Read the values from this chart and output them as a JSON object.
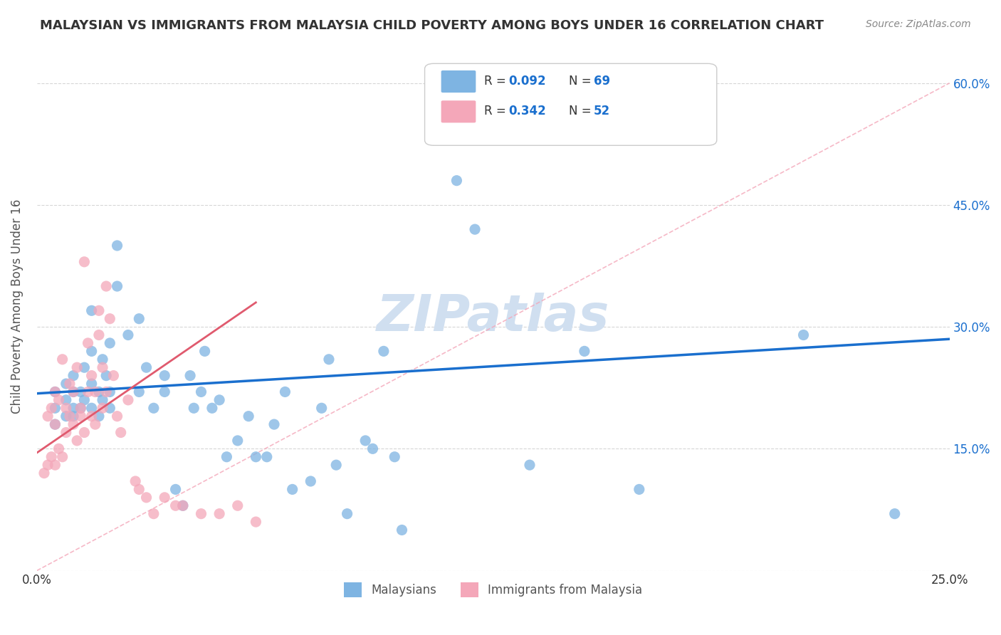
{
  "title": "MALAYSIAN VS IMMIGRANTS FROM MALAYSIA CHILD POVERTY AMONG BOYS UNDER 16 CORRELATION CHART",
  "source": "Source: ZipAtlas.com",
  "ylabel": "Child Poverty Among Boys Under 16",
  "xlim": [
    0.0,
    0.25
  ],
  "ylim": [
    0.0,
    0.65
  ],
  "blue_color": "#7eb4e2",
  "pink_color": "#f4a7b9",
  "blue_line_color": "#1a6fce",
  "pink_line_color": "#e05a6e",
  "watermark": "ZIPatlas",
  "watermark_color": "#d0dff0",
  "legend_label1": "Malaysians",
  "legend_label2": "Immigrants from Malaysia",
  "legend_r1": "0.092",
  "legend_n1": "69",
  "legend_r2": "0.342",
  "legend_n2": "52",
  "blue_scatter_x": [
    0.005,
    0.005,
    0.005,
    0.008,
    0.008,
    0.008,
    0.01,
    0.01,
    0.01,
    0.01,
    0.012,
    0.012,
    0.013,
    0.013,
    0.015,
    0.015,
    0.015,
    0.015,
    0.017,
    0.017,
    0.018,
    0.018,
    0.019,
    0.02,
    0.02,
    0.02,
    0.022,
    0.022,
    0.025,
    0.028,
    0.028,
    0.03,
    0.032,
    0.035,
    0.035,
    0.038,
    0.04,
    0.042,
    0.043,
    0.045,
    0.046,
    0.048,
    0.05,
    0.052,
    0.055,
    0.058,
    0.06,
    0.063,
    0.065,
    0.068,
    0.07,
    0.075,
    0.078,
    0.08,
    0.082,
    0.085,
    0.09,
    0.092,
    0.095,
    0.098,
    0.1,
    0.11,
    0.115,
    0.12,
    0.135,
    0.15,
    0.165,
    0.21,
    0.235
  ],
  "blue_scatter_y": [
    0.2,
    0.22,
    0.18,
    0.19,
    0.21,
    0.23,
    0.2,
    0.22,
    0.24,
    0.19,
    0.2,
    0.22,
    0.21,
    0.25,
    0.2,
    0.23,
    0.27,
    0.32,
    0.19,
    0.22,
    0.21,
    0.26,
    0.24,
    0.22,
    0.28,
    0.2,
    0.35,
    0.4,
    0.29,
    0.31,
    0.22,
    0.25,
    0.2,
    0.22,
    0.24,
    0.1,
    0.08,
    0.24,
    0.2,
    0.22,
    0.27,
    0.2,
    0.21,
    0.14,
    0.16,
    0.19,
    0.14,
    0.14,
    0.18,
    0.22,
    0.1,
    0.11,
    0.2,
    0.26,
    0.13,
    0.07,
    0.16,
    0.15,
    0.27,
    0.14,
    0.05,
    0.56,
    0.48,
    0.42,
    0.13,
    0.27,
    0.1,
    0.29,
    0.07
  ],
  "pink_scatter_x": [
    0.002,
    0.003,
    0.003,
    0.004,
    0.004,
    0.005,
    0.005,
    0.005,
    0.006,
    0.006,
    0.007,
    0.007,
    0.008,
    0.008,
    0.009,
    0.009,
    0.01,
    0.01,
    0.011,
    0.011,
    0.012,
    0.012,
    0.013,
    0.013,
    0.014,
    0.014,
    0.015,
    0.015,
    0.016,
    0.016,
    0.017,
    0.017,
    0.018,
    0.018,
    0.019,
    0.019,
    0.02,
    0.021,
    0.022,
    0.023,
    0.025,
    0.027,
    0.028,
    0.03,
    0.032,
    0.035,
    0.038,
    0.04,
    0.045,
    0.05,
    0.055,
    0.06
  ],
  "pink_scatter_y": [
    0.12,
    0.13,
    0.19,
    0.14,
    0.2,
    0.13,
    0.22,
    0.18,
    0.15,
    0.21,
    0.14,
    0.26,
    0.2,
    0.17,
    0.23,
    0.19,
    0.18,
    0.22,
    0.16,
    0.25,
    0.2,
    0.19,
    0.38,
    0.17,
    0.28,
    0.22,
    0.19,
    0.24,
    0.22,
    0.18,
    0.29,
    0.32,
    0.25,
    0.2,
    0.35,
    0.22,
    0.31,
    0.24,
    0.19,
    0.17,
    0.21,
    0.11,
    0.1,
    0.09,
    0.07,
    0.09,
    0.08,
    0.08,
    0.07,
    0.07,
    0.08,
    0.06
  ],
  "blue_line_x": [
    0.0,
    0.25
  ],
  "blue_line_y": [
    0.218,
    0.285
  ],
  "pink_line_x": [
    0.0,
    0.06
  ],
  "pink_line_y": [
    0.145,
    0.33
  ],
  "diag_line_x": [
    0.0,
    0.25
  ],
  "diag_line_y": [
    0.0,
    0.6
  ]
}
